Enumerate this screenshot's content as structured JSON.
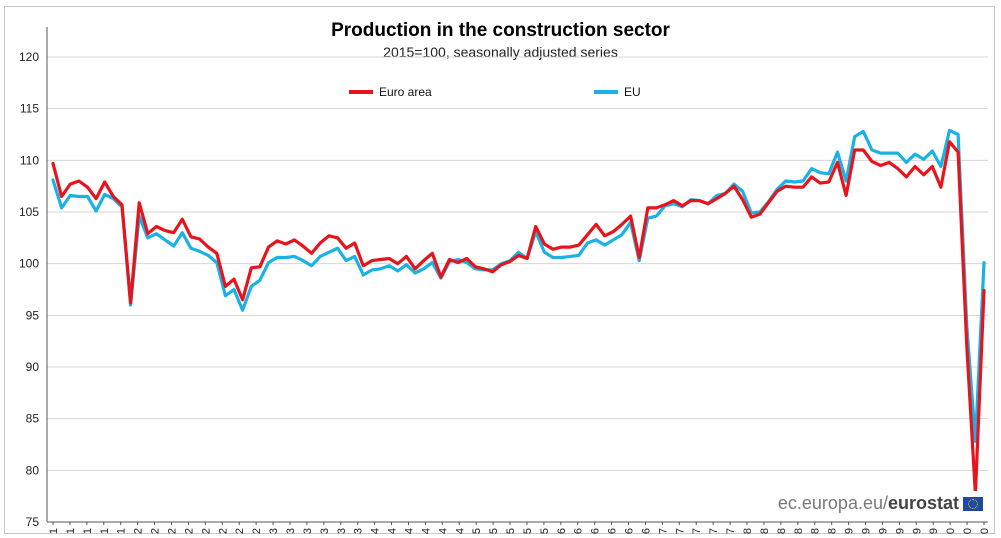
{
  "chart_data": {
    "type": "line",
    "title": "Production in the construction sector",
    "subtitle": "2015=100, seasonally adjusted series",
    "xlabel": "",
    "ylabel": "",
    "ylim": [
      75,
      120
    ],
    "yticks": [
      75,
      80,
      85,
      90,
      95,
      100,
      105,
      110,
      115,
      120
    ],
    "grid": "horizontal",
    "legend": "top-center",
    "xticks": [
      "1",
      "1",
      "1",
      "1",
      "1",
      "2",
      "2",
      "2",
      "2",
      "2",
      "2",
      "2",
      "2",
      "3",
      "3",
      "3",
      "3",
      "3",
      "3",
      "4",
      "4",
      "4",
      "4",
      "4",
      "4",
      "5",
      "5",
      "5",
      "5",
      "5",
      "6",
      "6",
      "6",
      "6",
      "6",
      "6",
      "7",
      "7",
      "7",
      "7",
      "7",
      "8",
      "8",
      "8",
      "8",
      "8",
      "8",
      "9",
      "9",
      "9",
      "9",
      "9",
      "9",
      "0",
      "0",
      "0"
    ],
    "series": [
      {
        "name": "Euro area",
        "color": "#e8141c",
        "values": [
          109.7,
          106.5,
          107.7,
          108.0,
          107.4,
          106.3,
          107.9,
          106.5,
          105.7,
          96.2,
          105.9,
          102.9,
          103.6,
          103.2,
          103.0,
          104.3,
          102.6,
          102.4,
          101.6,
          101.0,
          97.8,
          98.5,
          96.5,
          99.6,
          99.7,
          101.6,
          102.2,
          101.9,
          102.3,
          101.7,
          101.0,
          102.0,
          102.7,
          102.5,
          101.5,
          102.0,
          99.8,
          100.3,
          100.4,
          100.5,
          100.0,
          100.7,
          99.5,
          100.3,
          101.0,
          98.7,
          100.4,
          100.1,
          100.5,
          99.7,
          99.5,
          99.2,
          99.9,
          100.2,
          100.8,
          100.5,
          103.6,
          101.9,
          101.4,
          101.6,
          101.6,
          101.8,
          102.8,
          103.8,
          102.7,
          103.1,
          103.8,
          104.6,
          100.6,
          105.4,
          105.4,
          105.7,
          106.1,
          105.6,
          106.1,
          106.1,
          105.8,
          106.3,
          106.8,
          107.5,
          106.2,
          104.5,
          104.8,
          105.9,
          107.0,
          107.5,
          107.4,
          107.4,
          108.4,
          107.8,
          107.9,
          109.8,
          106.6,
          111.0,
          111.0,
          109.9,
          109.5,
          109.8,
          109.2,
          108.4,
          109.4,
          108.6,
          109.4,
          107.4,
          111.8,
          110.8,
          92.0,
          77.7,
          97.4
        ],
        "gap_before_index": 105
      },
      {
        "name": "EU",
        "color": "#1ab2e6",
        "values": [
          108.1,
          105.4,
          106.6,
          106.5,
          106.5,
          105.1,
          106.7,
          106.3,
          105.5,
          96.0,
          104.6,
          102.5,
          102.9,
          102.3,
          101.7,
          103.0,
          101.5,
          101.2,
          100.8,
          100.1,
          96.9,
          97.5,
          95.5,
          97.8,
          98.4,
          100.1,
          100.6,
          100.6,
          100.7,
          100.3,
          99.8,
          100.7,
          101.1,
          101.5,
          100.3,
          100.7,
          98.9,
          99.4,
          99.5,
          99.8,
          99.3,
          99.9,
          99.1,
          99.5,
          100.1,
          98.6,
          100.2,
          100.4,
          100.1,
          99.5,
          99.4,
          99.4,
          100.0,
          100.3,
          101.1,
          100.5,
          103.1,
          101.1,
          100.6,
          100.6,
          100.7,
          100.8,
          102.0,
          102.3,
          101.8,
          102.3,
          102.8,
          104.0,
          100.3,
          104.4,
          104.6,
          105.6,
          105.8,
          105.5,
          106.2,
          106.1,
          105.8,
          106.6,
          106.8,
          107.7,
          107.0,
          104.9,
          105.0,
          106.0,
          107.2,
          108.0,
          107.9,
          108.0,
          109.2,
          108.8,
          108.7,
          110.8,
          108.0,
          112.3,
          112.8,
          111.0,
          110.7,
          110.7,
          110.7,
          109.8,
          110.6,
          110.1,
          110.9,
          109.4,
          112.9,
          112.5,
          94.0,
          82.8,
          100.1
        ],
        "gap_before_index": 105
      }
    ]
  },
  "watermark": {
    "domain_text": "ec.europa.eu/",
    "brand_text": "eurostat",
    "icon": "eu-flag-icon"
  }
}
